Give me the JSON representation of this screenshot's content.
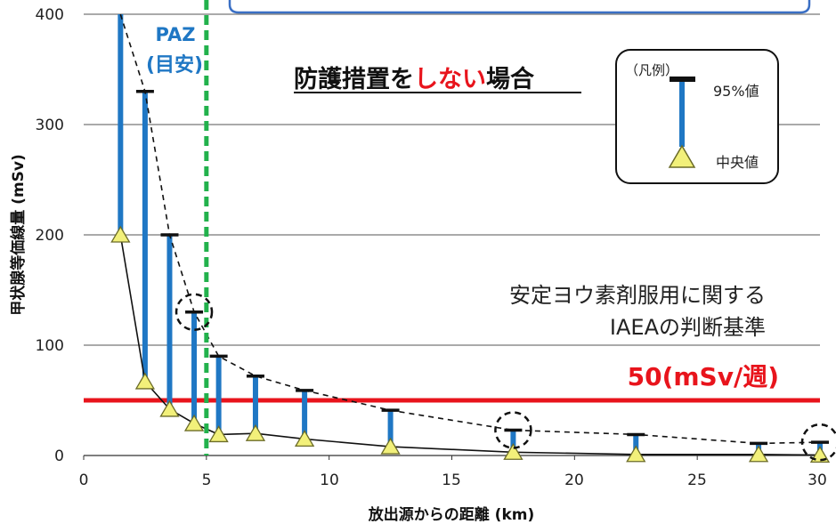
{
  "chart_data": {
    "type": "line",
    "title": "",
    "xlabel": "放出源からの距離 (km)",
    "ylabel": "甲状腺等価線量 (mSv)",
    "xlim": [
      0,
      30
    ],
    "ylim": [
      0,
      400
    ],
    "x_ticks": [
      0,
      5,
      10,
      15,
      20,
      25,
      30
    ],
    "y_ticks": [
      0,
      100,
      200,
      300,
      400
    ],
    "grid": "horizontal",
    "series": [
      {
        "kind": "median",
        "x": [
          1.5,
          2.5,
          3.5,
          4.5,
          5.5,
          7,
          9,
          12.5,
          17.5,
          22.5,
          27.5,
          30
        ],
        "values": [
          200,
          67,
          42,
          29,
          19,
          20,
          15,
          8,
          3,
          1,
          1,
          0.5
        ]
      },
      {
        "kind": "p95",
        "x": [
          1.5,
          2.5,
          3.5,
          4.5,
          5.5,
          7,
          9,
          12.5,
          17.5,
          22.5,
          27.5,
          30
        ],
        "values": [
          400,
          330,
          200,
          130,
          90,
          72,
          59,
          41,
          23,
          19,
          11,
          12
        ]
      }
    ],
    "annotations": {
      "paz_line": {
        "x": 5,
        "label_line1": "PAZ",
        "label_line2": "(目安)",
        "color": "#22b14c"
      },
      "threshold": {
        "y": 50,
        "label": "50(mSv/週)",
        "color": "#e8141c"
      },
      "criteria_line1": "安定ヨウ素剤服用に関する",
      "criteria_line2": "IAEAの判断基準",
      "headline_pre": "防護措置を",
      "headline_red": "しない",
      "headline_post": "場合",
      "circled_x": [
        4.5,
        17.5,
        30
      ]
    },
    "legend": {
      "title": "（凡例）",
      "p95_label": "95%値",
      "median_label": "中央値",
      "placement": "top-right"
    },
    "colors": {
      "bar": "#1f77c4",
      "cap": "#111111",
      "triangle_fill": "#f2f07a",
      "triangle_stroke": "#6b6b28",
      "grid": "#555555",
      "paz_label": "#1f77c4"
    }
  }
}
